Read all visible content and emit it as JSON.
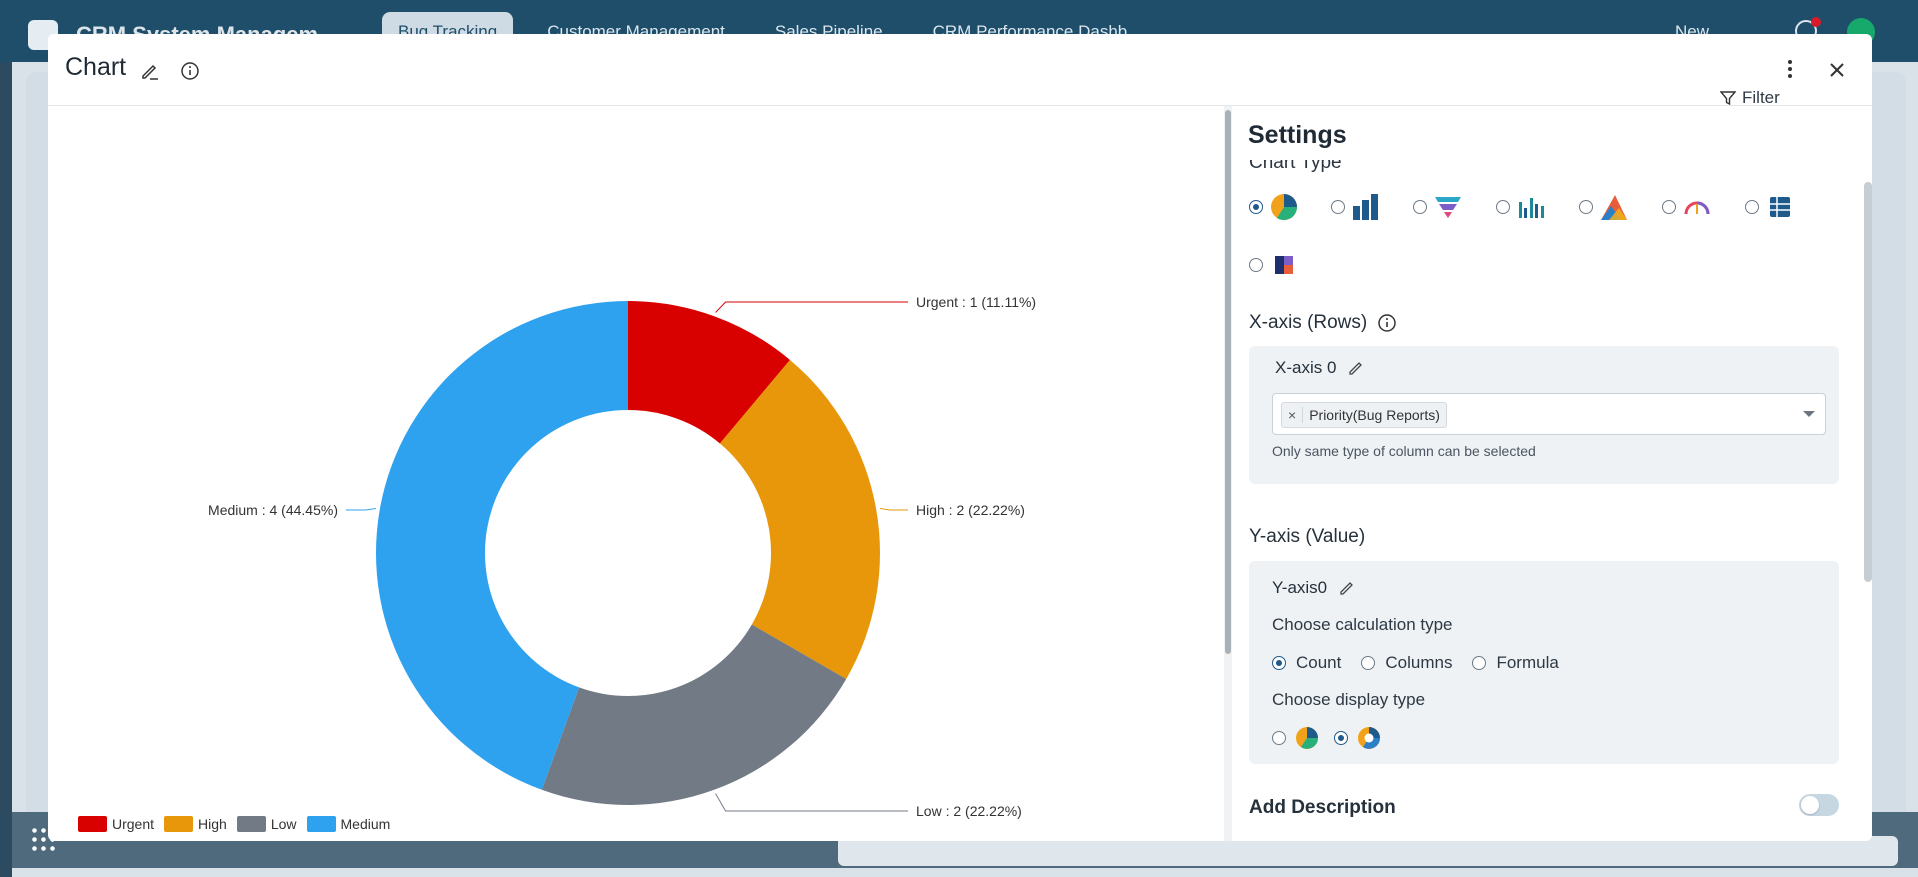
{
  "background": {
    "app_title": "CRM System Managem",
    "tabs": [
      "Bug Tracking",
      "Customer Management",
      "Sales Pipeline",
      "CRM Performance Dashb"
    ],
    "new_label": "New"
  },
  "modal": {
    "title": "Chart"
  },
  "chart_data": {
    "type": "pie",
    "variant": "donut",
    "categories": [
      "Urgent",
      "High",
      "Low",
      "Medium"
    ],
    "values": [
      1,
      2,
      2,
      4
    ],
    "percentages": [
      11.11,
      22.22,
      22.22,
      44.45
    ],
    "colors": [
      "#d90000",
      "#e8970a",
      "#727a86",
      "#2ea2ef"
    ],
    "labels": [
      "Urgent : 1 (11.11%)",
      "High : 2 (22.22%)",
      "Low : 2 (22.22%)",
      "Medium : 4 (44.45%)"
    ],
    "legend_position": "bottom-left"
  },
  "settings": {
    "title": "Settings",
    "filter_label": "Filter",
    "chart_type_label": "Chart Type",
    "chart_types": [
      {
        "name": "pie",
        "selected": true
      },
      {
        "name": "bar",
        "selected": false
      },
      {
        "name": "funnel",
        "selected": false
      },
      {
        "name": "grouped-bar",
        "selected": false
      },
      {
        "name": "area",
        "selected": false
      },
      {
        "name": "gauge",
        "selected": false
      },
      {
        "name": "table",
        "selected": false
      },
      {
        "name": "heatmap",
        "selected": false
      }
    ],
    "xaxis": {
      "section_label": "X-axis (Rows)",
      "name": "X-axis 0",
      "selected_column": "Priority(Bug Reports)",
      "hint": "Only same type of column can be selected"
    },
    "yaxis": {
      "section_label": "Y-axis (Value)",
      "name": "Y-axis0",
      "calc_label": "Choose calculation type",
      "calc_options": [
        "Count",
        "Columns",
        "Formula"
      ],
      "calc_selected": "Count",
      "display_label": "Choose display type",
      "display_selected": "donut"
    },
    "add_description_label": "Add Description",
    "add_description_enabled": false
  }
}
